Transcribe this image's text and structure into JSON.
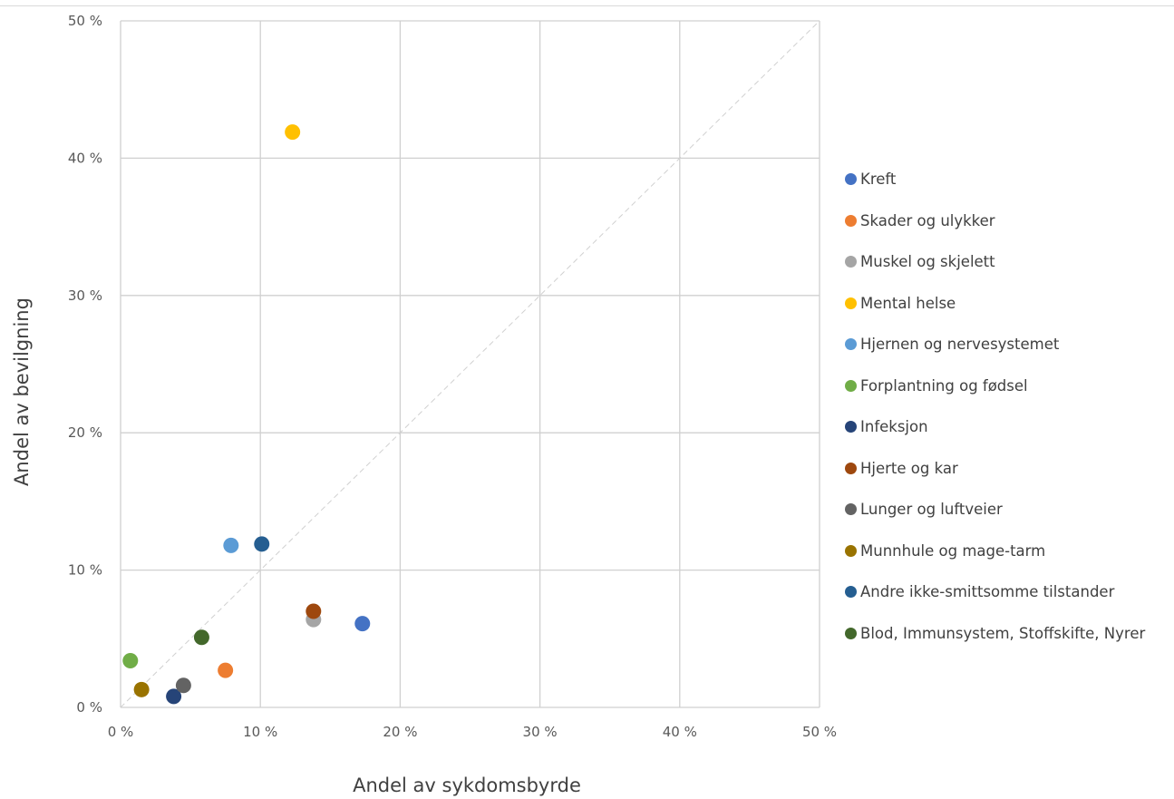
{
  "chart_data": {
    "type": "scatter",
    "title": "",
    "xlabel": "Andel av sykdomsbyrde",
    "ylabel": "Andel av bevilgning",
    "xlim": [
      0,
      50
    ],
    "ylim": [
      0,
      50
    ],
    "x_ticks": [
      0,
      10,
      20,
      30,
      40,
      50
    ],
    "y_ticks": [
      0,
      10,
      20,
      30,
      40,
      50
    ],
    "x_tick_labels": [
      "0 %",
      "10 %",
      "20 %",
      "30 %",
      "40 %",
      "50 %"
    ],
    "y_tick_labels": [
      "0 %",
      "10 %",
      "20 %",
      "30 %",
      "40 %",
      "50 %"
    ],
    "grid": true,
    "reference_line": "y = x (dashed)",
    "legend_position": "right",
    "series": [
      {
        "name": "Kreft",
        "color": "#4472C4",
        "x": 17.3,
        "y": 6.1
      },
      {
        "name": "Skader og ulykker",
        "color": "#ED7D31",
        "x": 7.5,
        "y": 2.7
      },
      {
        "name": "Muskel og skjelett",
        "color": "#A5A5A5",
        "x": 13.8,
        "y": 6.4
      },
      {
        "name": "Mental helse",
        "color": "#FFC000",
        "x": 12.3,
        "y": 41.9
      },
      {
        "name": "Hjernen og nervesystemet",
        "color": "#5B9BD5",
        "x": 7.9,
        "y": 11.8
      },
      {
        "name": "Forplantning og fødsel",
        "color": "#70AD47",
        "x": 0.7,
        "y": 3.4
      },
      {
        "name": "Infeksjon",
        "color": "#264478",
        "x": 3.8,
        "y": 0.8
      },
      {
        "name": "Hjerte og kar",
        "color": "#9E480E",
        "x": 13.8,
        "y": 7.0
      },
      {
        "name": "Lunger og luftveier",
        "color": "#636363",
        "x": 4.5,
        "y": 1.6
      },
      {
        "name": "Munnhule og mage-tarm",
        "color": "#997300",
        "x": 1.5,
        "y": 1.3
      },
      {
        "name": "Andre ikke-smittsomme tilstander",
        "color": "#255E91",
        "x": 10.1,
        "y": 11.9
      },
      {
        "name": "Blod, Immunsystem, Stoffskifte, Nyrer",
        "color": "#43682B",
        "x": 5.8,
        "y": 5.1
      }
    ]
  }
}
